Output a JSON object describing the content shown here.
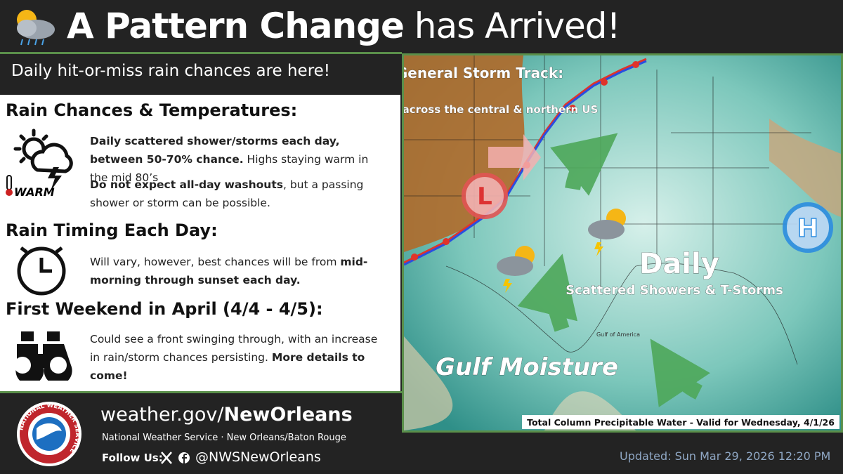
{
  "header": {
    "title_bold": "A Pattern Change",
    "title_rest": "has Arrived!",
    "subtitle": "Daily hit-or-miss rain chances are here!"
  },
  "sections": [
    {
      "heading": "Rain Chances & Temperatures:",
      "icon_label": "WARM",
      "paragraphs": [
        [
          {
            "text": "Daily scattered shower/storms each day, between 50-70% chance.",
            "bold": true
          },
          {
            "text": " Highs staying warm in the mid 80’s",
            "bold": false
          }
        ],
        [
          {
            "text": "Do not expect all-day washouts",
            "bold": true
          },
          {
            "text": ", but a passing shower or storm can be possible.",
            "bold": false
          }
        ]
      ]
    },
    {
      "heading": "Rain Timing Each Day:",
      "paragraphs": [
        [
          {
            "text": "Will vary, however, best chances will be from ",
            "bold": false
          },
          {
            "text": "mid-morning through sunset each day.",
            "bold": true
          }
        ]
      ]
    },
    {
      "heading": "First Weekend in April (4/4 - 4/5):",
      "paragraphs": [
        [
          {
            "text": "Could see a front swinging through, with an increase in rain/storm chances persisting. ",
            "bold": false
          },
          {
            "text": "More details to come!",
            "bold": true
          }
        ]
      ]
    }
  ],
  "map": {
    "storm_track_title": "General Storm Track:",
    "storm_track_text": "Active across the central & northern US",
    "low": "L",
    "high": "H",
    "daily": "Daily",
    "daily_text": "Scattered Showers & T-Storms",
    "gulf_moisture": "Gulf Moisture",
    "gulf_name": "Gulf of America",
    "caption": "Total Column Precipitable Water - Valid for Wednesday, 4/1/26"
  },
  "footer": {
    "logo_text": "NATIONAL WEATHER SERVICE",
    "url_plain": "weather.gov/",
    "url_bold": "NewOrleans",
    "office": "National Weather Service · New Orleans/Baton Rouge",
    "follow": "Follow Us:",
    "handle": "@NWSNewOrleans",
    "updated": "Updated: Sun Mar 29, 2026 12:20 PM"
  }
}
